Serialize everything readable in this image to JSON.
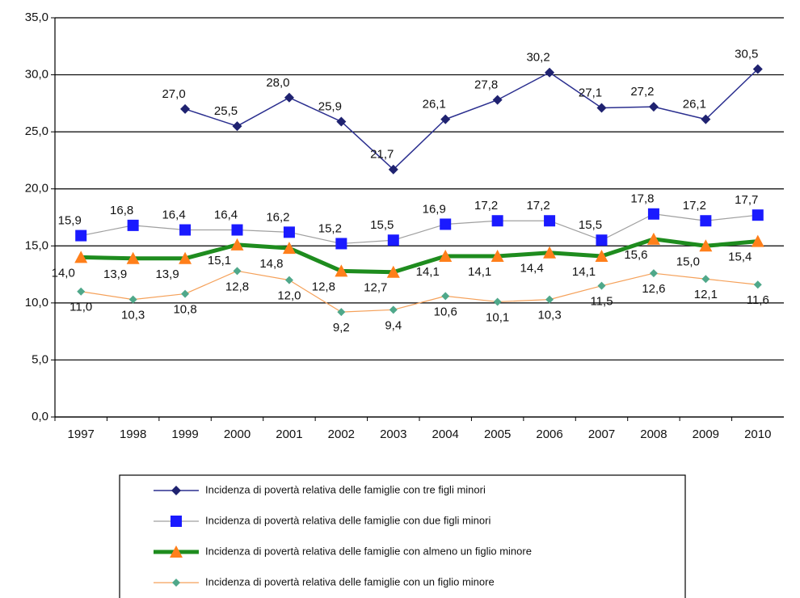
{
  "chart_data": {
    "type": "line",
    "categories": [
      "1997",
      "1998",
      "1999",
      "2000",
      "2001",
      "2002",
      "2003",
      "2004",
      "2005",
      "2006",
      "2007",
      "2008",
      "2009",
      "2010"
    ],
    "ylim": [
      0,
      35
    ],
    "yticks": [
      {
        "value": 0,
        "label": "0,0"
      },
      {
        "value": 5,
        "label": "5,0"
      },
      {
        "value": 10,
        "label": "10,0"
      },
      {
        "value": 15,
        "label": "15,0"
      },
      {
        "value": 20,
        "label": "20,0"
      },
      {
        "value": 25,
        "label": "25,0"
      },
      {
        "value": 30,
        "label": "30,0"
      },
      {
        "value": 35,
        "label": "35,0"
      }
    ],
    "grid": true,
    "series": [
      {
        "name": "Incidenza di povertà relativa delle famiglie con tre figli minori",
        "color": "#2b2f8f",
        "marker_color": "#1f2270",
        "marker": "diamond",
        "values": [
          null,
          null,
          27.0,
          25.5,
          28.0,
          25.9,
          21.7,
          26.1,
          27.8,
          30.2,
          27.1,
          27.2,
          26.1,
          30.5
        ],
        "value_labels": [
          null,
          null,
          "27,0",
          "25,5",
          "28,0",
          "25,9",
          "21,7",
          "26,1",
          "27,8",
          "30,2",
          "27,1",
          "27,2",
          "26,1",
          "30,5"
        ]
      },
      {
        "name": "Incidenza di povertà relativa delle famiglie con due figli minori",
        "color": "#a0a0a0",
        "marker_color": "#1a1aff",
        "marker": "square",
        "values": [
          15.9,
          16.8,
          16.4,
          16.4,
          16.2,
          15.2,
          15.5,
          16.9,
          17.2,
          17.2,
          15.5,
          17.8,
          17.2,
          17.7
        ],
        "value_labels": [
          "15,9",
          "16,8",
          "16,4",
          "16,4",
          "16,2",
          "15,2",
          "15,5",
          "16,9",
          "17,2",
          "17,2",
          "15,5",
          "17,8",
          "17,2",
          "17,7"
        ]
      },
      {
        "name": "Incidenza di povertà relativa delle famiglie con almeno un figlio minore",
        "color": "#1e8c1e",
        "marker_color": "#ff7f1a",
        "marker": "triangle",
        "values": [
          14.0,
          13.9,
          13.9,
          15.1,
          14.8,
          12.8,
          12.7,
          14.1,
          14.1,
          14.4,
          14.1,
          15.6,
          15.0,
          15.4
        ],
        "value_labels": [
          "14,0",
          "13,9",
          "13,9",
          "15,1",
          "14,8",
          "12,8",
          "12,7",
          "14,1",
          "14,1",
          "14,4",
          "14,1",
          "15,6",
          "15,0",
          "15,4"
        ]
      },
      {
        "name": "Incidenza di povertà relativa delle famiglie con un figlio minore",
        "color": "#f5a15a",
        "marker_color": "#4fa88a",
        "marker": "diamond-small",
        "values": [
          11.0,
          10.3,
          10.8,
          12.8,
          12.0,
          9.2,
          9.4,
          10.6,
          10.1,
          10.3,
          11.5,
          12.6,
          12.1,
          11.6
        ],
        "value_labels": [
          "11,0",
          "10,3",
          "10,8",
          "12,8",
          "12,0",
          "9,2",
          "9,4",
          "10,6",
          "10,1",
          "10,3",
          "11,5",
          "12,6",
          "12,1",
          "11,6"
        ]
      }
    ]
  }
}
